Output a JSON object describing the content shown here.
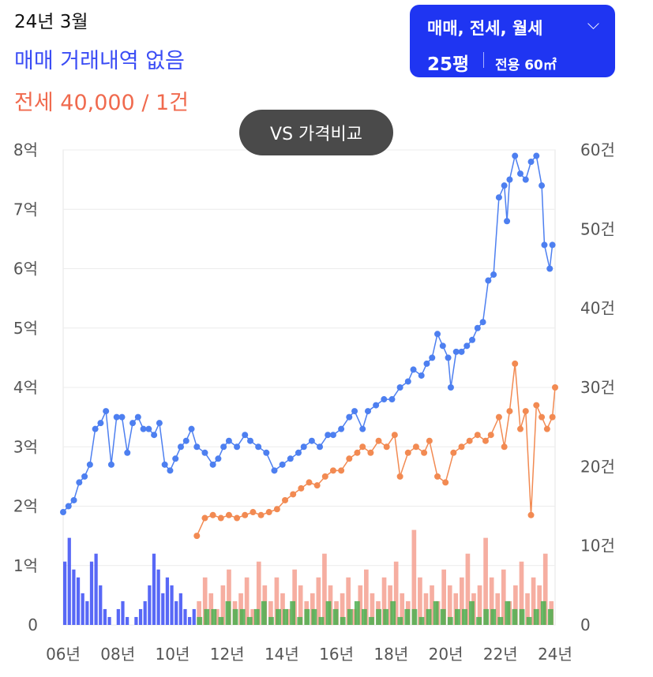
{
  "header": {
    "date": "24년 3월",
    "sale_status": "매매 거래내역 없음",
    "jeonse_price": "전세 40,000 / 1건"
  },
  "filter": {
    "type_label": "매매, 전세, 월세",
    "size": "25평",
    "area": "전용 60㎡"
  },
  "compare_button": "VS 가격비교",
  "colors": {
    "sale": "#4d7ff0",
    "jeonse": "#f28a52",
    "sale_volume": "#3b4df5",
    "jeonse_volume": "#f5a090",
    "rent_volume": "#4caf50",
    "filter_bg": "#1f35f2"
  },
  "chart_data": {
    "type": "line",
    "x_ticks": [
      "06년",
      "08년",
      "10년",
      "12년",
      "14년",
      "16년",
      "18년",
      "20년",
      "22년",
      "24년"
    ],
    "y_left_ticks": [
      "0",
      "1억",
      "2억",
      "3억",
      "4억",
      "5억",
      "6억",
      "7억",
      "8억"
    ],
    "y_right_ticks": [
      "0",
      "10건",
      "20건",
      "30건",
      "40건",
      "50건",
      "60건"
    ],
    "y_left_range": [
      0,
      8
    ],
    "y_right_range": [
      0,
      60
    ],
    "x_range": [
      2006,
      2024.4
    ],
    "series": [
      {
        "kind": "price",
        "color_key": "sale",
        "points": [
          [
            2006.0,
            1.9
          ],
          [
            2006.2,
            2.0
          ],
          [
            2006.4,
            2.1
          ],
          [
            2006.6,
            2.4
          ],
          [
            2006.8,
            2.5
          ],
          [
            2007.0,
            2.7
          ],
          [
            2007.2,
            3.3
          ],
          [
            2007.4,
            3.4
          ],
          [
            2007.6,
            3.6
          ],
          [
            2007.8,
            2.7
          ],
          [
            2008.0,
            3.5
          ],
          [
            2008.2,
            3.5
          ],
          [
            2008.4,
            2.9
          ],
          [
            2008.6,
            3.4
          ],
          [
            2008.8,
            3.5
          ],
          [
            2009.0,
            3.3
          ],
          [
            2009.2,
            3.3
          ],
          [
            2009.4,
            3.2
          ],
          [
            2009.6,
            3.4
          ],
          [
            2009.8,
            2.7
          ],
          [
            2010.0,
            2.6
          ],
          [
            2010.2,
            2.8
          ],
          [
            2010.4,
            3.0
          ],
          [
            2010.6,
            3.1
          ],
          [
            2010.8,
            3.3
          ],
          [
            2011.0,
            3.0
          ],
          [
            2011.3,
            2.9
          ],
          [
            2011.6,
            2.7
          ],
          [
            2011.8,
            2.8
          ],
          [
            2012.0,
            3.0
          ],
          [
            2012.2,
            3.1
          ],
          [
            2012.5,
            3.0
          ],
          [
            2012.8,
            3.2
          ],
          [
            2013.0,
            3.1
          ],
          [
            2013.3,
            3.0
          ],
          [
            2013.6,
            2.9
          ],
          [
            2013.9,
            2.6
          ],
          [
            2014.2,
            2.7
          ],
          [
            2014.5,
            2.8
          ],
          [
            2014.8,
            2.9
          ],
          [
            2015.0,
            3.0
          ],
          [
            2015.3,
            3.1
          ],
          [
            2015.6,
            3.0
          ],
          [
            2015.9,
            3.2
          ],
          [
            2016.1,
            3.2
          ],
          [
            2016.4,
            3.3
          ],
          [
            2016.7,
            3.5
          ],
          [
            2016.9,
            3.6
          ],
          [
            2017.2,
            3.3
          ],
          [
            2017.4,
            3.6
          ],
          [
            2017.7,
            3.7
          ],
          [
            2018.0,
            3.8
          ],
          [
            2018.3,
            3.8
          ],
          [
            2018.6,
            4.0
          ],
          [
            2018.9,
            4.1
          ],
          [
            2019.1,
            4.3
          ],
          [
            2019.4,
            4.2
          ],
          [
            2019.6,
            4.4
          ],
          [
            2019.8,
            4.5
          ],
          [
            2020.0,
            4.9
          ],
          [
            2020.2,
            4.7
          ],
          [
            2020.4,
            4.5
          ],
          [
            2020.5,
            4.0
          ],
          [
            2020.7,
            4.6
          ],
          [
            2020.9,
            4.6
          ],
          [
            2021.1,
            4.7
          ],
          [
            2021.3,
            4.8
          ],
          [
            2021.5,
            5.0
          ],
          [
            2021.7,
            5.1
          ],
          [
            2021.9,
            5.8
          ],
          [
            2022.1,
            5.9
          ],
          [
            2022.3,
            7.2
          ],
          [
            2022.5,
            7.4
          ],
          [
            2022.6,
            6.8
          ],
          [
            2022.7,
            7.5
          ],
          [
            2022.9,
            7.9
          ],
          [
            2023.1,
            7.6
          ],
          [
            2023.3,
            7.5
          ],
          [
            2023.5,
            7.8
          ],
          [
            2023.7,
            7.9
          ],
          [
            2023.9,
            7.4
          ],
          [
            2024.0,
            6.4
          ],
          [
            2024.2,
            6.0
          ],
          [
            2024.3,
            6.4
          ]
        ]
      },
      {
        "kind": "price",
        "color_key": "jeonse",
        "points": [
          [
            2011.0,
            1.5
          ],
          [
            2011.3,
            1.8
          ],
          [
            2011.6,
            1.85
          ],
          [
            2011.9,
            1.8
          ],
          [
            2012.2,
            1.85
          ],
          [
            2012.5,
            1.8
          ],
          [
            2012.8,
            1.85
          ],
          [
            2013.1,
            1.9
          ],
          [
            2013.4,
            1.85
          ],
          [
            2013.7,
            1.9
          ],
          [
            2014.0,
            1.95
          ],
          [
            2014.3,
            2.1
          ],
          [
            2014.6,
            2.2
          ],
          [
            2014.9,
            2.3
          ],
          [
            2015.2,
            2.4
          ],
          [
            2015.5,
            2.35
          ],
          [
            2015.8,
            2.5
          ],
          [
            2016.1,
            2.6
          ],
          [
            2016.4,
            2.6
          ],
          [
            2016.7,
            2.8
          ],
          [
            2017.0,
            2.9
          ],
          [
            2017.2,
            3.0
          ],
          [
            2017.5,
            2.9
          ],
          [
            2017.8,
            3.1
          ],
          [
            2018.1,
            3.0
          ],
          [
            2018.4,
            3.2
          ],
          [
            2018.6,
            2.5
          ],
          [
            2018.9,
            2.9
          ],
          [
            2019.2,
            3.0
          ],
          [
            2019.5,
            2.9
          ],
          [
            2019.7,
            3.1
          ],
          [
            2020.0,
            2.5
          ],
          [
            2020.3,
            2.4
          ],
          [
            2020.6,
            2.9
          ],
          [
            2020.9,
            3.0
          ],
          [
            2021.2,
            3.1
          ],
          [
            2021.5,
            3.2
          ],
          [
            2021.8,
            3.1
          ],
          [
            2022.0,
            3.2
          ],
          [
            2022.3,
            3.5
          ],
          [
            2022.5,
            3.0
          ],
          [
            2022.7,
            3.6
          ],
          [
            2022.9,
            4.4
          ],
          [
            2023.1,
            3.3
          ],
          [
            2023.3,
            3.6
          ],
          [
            2023.5,
            1.85
          ],
          [
            2023.7,
            3.7
          ],
          [
            2023.9,
            3.5
          ],
          [
            2024.1,
            3.3
          ],
          [
            2024.3,
            3.5
          ],
          [
            2024.4,
            4.0
          ]
        ]
      }
    ],
    "volume_series": [
      {
        "color_key": "sale_volume",
        "x_start": 2006.0,
        "x_end": 2011.0,
        "pattern": [
          8,
          11,
          7,
          6,
          4,
          3,
          8,
          9,
          5,
          2,
          1,
          0,
          2,
          3,
          1,
          0,
          1,
          2,
          3,
          5,
          9,
          7,
          4,
          6,
          5,
          3,
          4,
          2,
          1,
          2
        ]
      },
      {
        "color_key": "jeonse_volume",
        "x_start": 2011.0,
        "x_end": 2024.4,
        "pattern": [
          3,
          6,
          4,
          2,
          5,
          7,
          3,
          4,
          6,
          2,
          8,
          5,
          3,
          6,
          4,
          2,
          7,
          5,
          3,
          4,
          6,
          9,
          5,
          3,
          4,
          6,
          2,
          5,
          7,
          4,
          3,
          6,
          5,
          8,
          4,
          3,
          12,
          6,
          4,
          5,
          3,
          7,
          5,
          4,
          6,
          9,
          4,
          5,
          11,
          6,
          4,
          7,
          3,
          5,
          8,
          4,
          6,
          5,
          9,
          3
        ]
      },
      {
        "color_key": "rent_volume",
        "x_start": 2011.0,
        "x_end": 2024.4,
        "pattern": [
          1,
          2,
          2,
          1,
          3,
          2,
          2,
          1,
          2,
          3,
          1,
          2,
          2,
          3,
          1,
          2,
          2,
          1,
          3,
          2,
          1,
          2,
          3,
          2,
          1,
          2,
          2,
          3,
          1,
          2,
          2,
          1,
          2,
          3,
          2,
          1,
          2,
          2,
          3,
          1,
          2,
          2,
          1,
          3,
          2,
          2,
          1,
          2,
          3,
          2
        ]
      }
    ],
    "grid": true
  }
}
